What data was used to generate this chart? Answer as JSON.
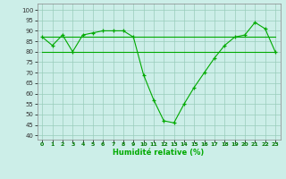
{
  "x": [
    0,
    1,
    2,
    3,
    4,
    5,
    6,
    7,
    8,
    9,
    10,
    11,
    12,
    13,
    14,
    15,
    16,
    17,
    18,
    19,
    20,
    21,
    22,
    23
  ],
  "y_main": [
    87,
    83,
    88,
    80,
    88,
    89,
    90,
    90,
    90,
    87,
    69,
    57,
    47,
    46,
    55,
    63,
    70,
    77,
    83,
    87,
    88,
    94,
    91,
    80
  ],
  "y_flat1": [
    87,
    87,
    87,
    87,
    87,
    87,
    87,
    87,
    87,
    87,
    87,
    87,
    87,
    87,
    87,
    87,
    87,
    87,
    87,
    87,
    87,
    87,
    87,
    87
  ],
  "y_flat2": [
    80,
    80,
    80,
    80,
    80,
    80,
    80,
    80,
    80,
    80,
    80,
    80,
    80,
    80,
    80,
    80,
    80,
    80,
    80,
    80,
    80,
    80,
    80,
    80
  ],
  "line_color": "#00aa00",
  "bg_color": "#cceee8",
  "grid_color": "#99ccbb",
  "xlabel": "Humidité relative (%)",
  "xticks": [
    0,
    1,
    2,
    3,
    4,
    5,
    6,
    7,
    8,
    9,
    10,
    11,
    12,
    13,
    14,
    15,
    16,
    17,
    18,
    19,
    20,
    21,
    22,
    23
  ],
  "yticks": [
    40,
    45,
    50,
    55,
    60,
    65,
    70,
    75,
    80,
    85,
    90,
    95,
    100
  ],
  "ylim": [
    38,
    103
  ],
  "xlim": [
    -0.5,
    23.5
  ]
}
